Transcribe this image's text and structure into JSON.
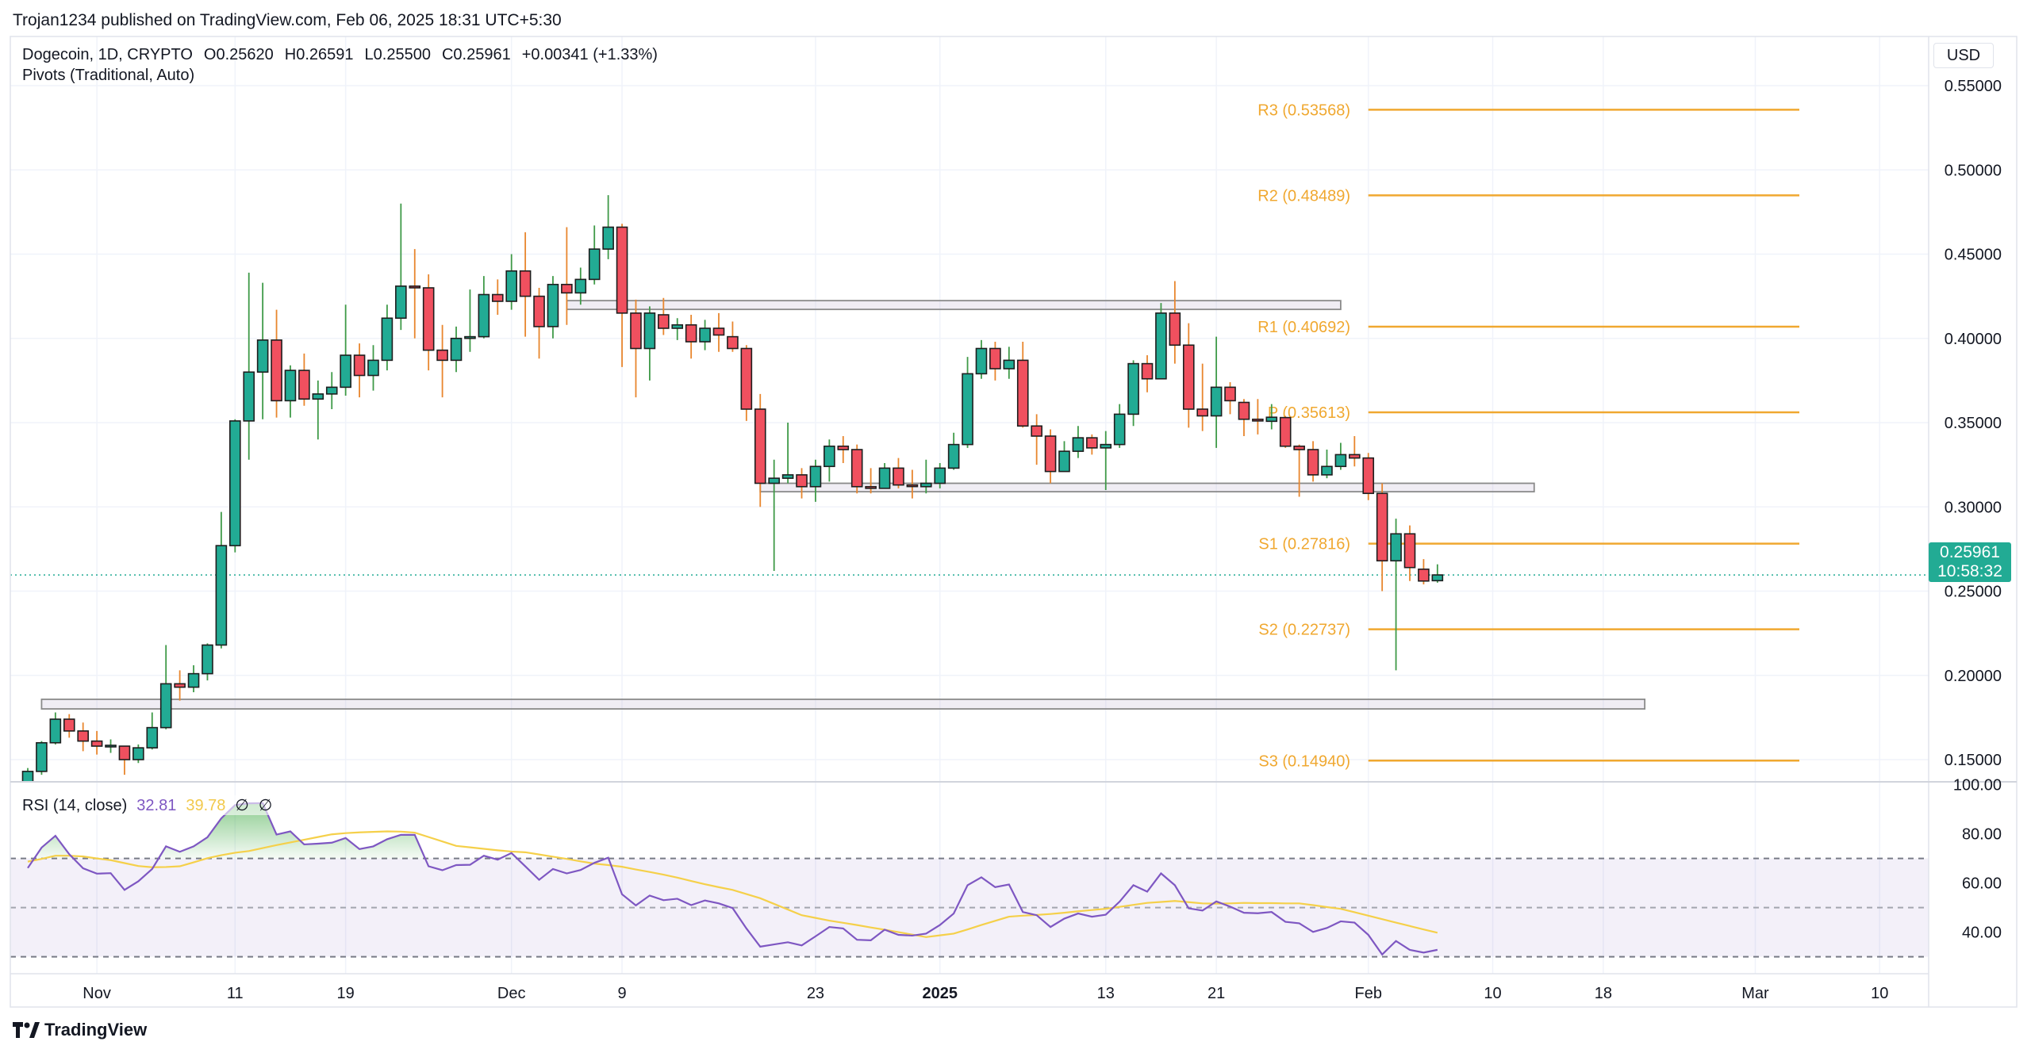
{
  "header": {
    "published": "Trojan1234 published on TradingView.com, Feb 06, 2025 18:31 UTC+5:30"
  },
  "legend": {
    "symbol": "Dogecoin, 1D, CRYPTO",
    "open": "O0.25620",
    "high": "H0.26591",
    "low": "L0.25500",
    "close": "C0.25961",
    "change": "+0.00341 (+1.33%)",
    "indicator": "Pivots (Traditional, Auto)"
  },
  "rsi_legend": {
    "label": "RSI (14, close)",
    "rsi_value": "32.81",
    "ma_value": "39.78",
    "icon1": "∅",
    "icon2": "∅"
  },
  "currency": "USD",
  "last_price": {
    "value": "0.25961",
    "countdown": "10:58:32"
  },
  "logo": {
    "text": "TradingView"
  },
  "colors": {
    "up": "#22ab94",
    "down": "#f0505f",
    "pivot": "#f0a830",
    "rsi": "#7e57c2",
    "rsi_ma": "#f5d04a"
  },
  "chart_data": [
    {
      "type": "candlestick",
      "interval": "1D",
      "yticks": [
        "0.55000",
        "0.50000",
        "0.45000",
        "0.40000",
        "0.35000",
        "0.30000",
        "0.25000",
        "0.20000",
        "0.15000"
      ],
      "xticks": [
        {
          "label": "Nov",
          "date": "2024-11-01"
        },
        {
          "label": "11",
          "date": "2024-11-11"
        },
        {
          "label": "19",
          "date": "2024-11-19"
        },
        {
          "label": "Dec",
          "date": "2024-12-01"
        },
        {
          "label": "9",
          "date": "2024-12-09"
        },
        {
          "label": "23",
          "date": "2024-12-23"
        },
        {
          "label": "2025",
          "date": "2025-01-01",
          "bold": true
        },
        {
          "label": "13",
          "date": "2025-01-13"
        },
        {
          "label": "21",
          "date": "2025-01-21"
        },
        {
          "label": "Feb",
          "date": "2025-02-01"
        },
        {
          "label": "10",
          "date": "2025-02-10"
        },
        {
          "label": "18",
          "date": "2025-02-18"
        },
        {
          "label": "Mar",
          "date": "2025-03-01"
        },
        {
          "label": "10",
          "date": "2025-03-10"
        }
      ],
      "dates": [
        "2024-10-27",
        "2024-10-28",
        "2024-10-29",
        "2024-10-30",
        "2024-10-31",
        "2024-11-01",
        "2024-11-02",
        "2024-11-03",
        "2024-11-04",
        "2024-11-05",
        "2024-11-06",
        "2024-11-07",
        "2024-11-08",
        "2024-11-09",
        "2024-11-10",
        "2024-11-11",
        "2024-11-12",
        "2024-11-13",
        "2024-11-14",
        "2024-11-15",
        "2024-11-16",
        "2024-11-17",
        "2024-11-18",
        "2024-11-19",
        "2024-11-20",
        "2024-11-21",
        "2024-11-22",
        "2024-11-23",
        "2024-11-24",
        "2024-11-25",
        "2024-11-26",
        "2024-11-27",
        "2024-11-28",
        "2024-11-29",
        "2024-11-30",
        "2024-12-01",
        "2024-12-02",
        "2024-12-03",
        "2024-12-04",
        "2024-12-05",
        "2024-12-06",
        "2024-12-07",
        "2024-12-08",
        "2024-12-09",
        "2024-12-10",
        "2024-12-11",
        "2024-12-12",
        "2024-12-13",
        "2024-12-14",
        "2024-12-15",
        "2024-12-16",
        "2024-12-17",
        "2024-12-18",
        "2024-12-19",
        "2024-12-20",
        "2024-12-21",
        "2024-12-22",
        "2024-12-23",
        "2024-12-24",
        "2024-12-25",
        "2024-12-26",
        "2024-12-27",
        "2024-12-28",
        "2024-12-29",
        "2024-12-30",
        "2024-12-31",
        "2025-01-01",
        "2025-01-02",
        "2025-01-03",
        "2025-01-04",
        "2025-01-05",
        "2025-01-06",
        "2025-01-07",
        "2025-01-08",
        "2025-01-09",
        "2025-01-10",
        "2025-01-11",
        "2025-01-12",
        "2025-01-13",
        "2025-01-14",
        "2025-01-15",
        "2025-01-16",
        "2025-01-17",
        "2025-01-18",
        "2025-01-19",
        "2025-01-20",
        "2025-01-21",
        "2025-01-22",
        "2025-01-23",
        "2025-01-24",
        "2025-01-25",
        "2025-01-26",
        "2025-01-27",
        "2025-01-28",
        "2025-01-29",
        "2025-01-30",
        "2025-01-31",
        "2025-02-01",
        "2025-02-02",
        "2025-02-03",
        "2025-02-04",
        "2025-02-05",
        "2025-02-06"
      ],
      "ohlc": [
        [
          0.136,
          0.145,
          0.135,
          0.143
        ],
        [
          0.143,
          0.161,
          0.141,
          0.16
        ],
        [
          0.16,
          0.178,
          0.159,
          0.174
        ],
        [
          0.174,
          0.177,
          0.163,
          0.167
        ],
        [
          0.167,
          0.172,
          0.155,
          0.161
        ],
        [
          0.161,
          0.167,
          0.153,
          0.158
        ],
        [
          0.158,
          0.162,
          0.154,
          0.1585
        ],
        [
          0.158,
          0.158,
          0.141,
          0.15
        ],
        [
          0.15,
          0.159,
          0.148,
          0.157
        ],
        [
          0.157,
          0.178,
          0.156,
          0.169
        ],
        [
          0.169,
          0.218,
          0.168,
          0.195
        ],
        [
          0.195,
          0.203,
          0.185,
          0.193
        ],
        [
          0.193,
          0.206,
          0.19,
          0.201
        ],
        [
          0.201,
          0.219,
          0.197,
          0.218
        ],
        [
          0.218,
          0.297,
          0.216,
          0.277
        ],
        [
          0.277,
          0.352,
          0.273,
          0.351
        ],
        [
          0.351,
          0.439,
          0.328,
          0.38
        ],
        [
          0.38,
          0.433,
          0.352,
          0.399
        ],
        [
          0.399,
          0.417,
          0.353,
          0.363
        ],
        [
          0.363,
          0.384,
          0.353,
          0.381
        ],
        [
          0.381,
          0.391,
          0.36,
          0.364
        ],
        [
          0.364,
          0.375,
          0.34,
          0.367
        ],
        [
          0.367,
          0.38,
          0.358,
          0.371
        ],
        [
          0.371,
          0.42,
          0.366,
          0.39
        ],
        [
          0.39,
          0.397,
          0.365,
          0.378
        ],
        [
          0.378,
          0.396,
          0.369,
          0.387
        ],
        [
          0.387,
          0.42,
          0.381,
          0.412
        ],
        [
          0.412,
          0.48,
          0.405,
          0.431
        ],
        [
          0.431,
          0.453,
          0.4,
          0.43
        ],
        [
          0.43,
          0.438,
          0.381,
          0.393
        ],
        [
          0.393,
          0.408,
          0.365,
          0.387
        ],
        [
          0.387,
          0.407,
          0.38,
          0.4
        ],
        [
          0.4,
          0.429,
          0.392,
          0.401
        ],
        [
          0.401,
          0.437,
          0.4,
          0.426
        ],
        [
          0.426,
          0.435,
          0.414,
          0.422
        ],
        [
          0.422,
          0.45,
          0.417,
          0.44
        ],
        [
          0.44,
          0.463,
          0.401,
          0.425
        ],
        [
          0.425,
          0.43,
          0.388,
          0.407
        ],
        [
          0.407,
          0.437,
          0.4,
          0.432
        ],
        [
          0.432,
          0.466,
          0.408,
          0.427
        ],
        [
          0.427,
          0.442,
          0.42,
          0.435
        ],
        [
          0.435,
          0.467,
          0.432,
          0.453
        ],
        [
          0.453,
          0.485,
          0.447,
          0.466
        ],
        [
          0.466,
          0.468,
          0.383,
          0.415
        ],
        [
          0.415,
          0.423,
          0.365,
          0.394
        ],
        [
          0.394,
          0.419,
          0.375,
          0.415
        ],
        [
          0.414,
          0.424,
          0.402,
          0.406
        ],
        [
          0.406,
          0.412,
          0.399,
          0.408
        ],
        [
          0.408,
          0.414,
          0.388,
          0.398
        ],
        [
          0.398,
          0.411,
          0.393,
          0.406
        ],
        [
          0.406,
          0.415,
          0.392,
          0.402
        ],
        [
          0.401,
          0.41,
          0.392,
          0.394
        ],
        [
          0.394,
          0.396,
          0.351,
          0.358
        ],
        [
          0.358,
          0.367,
          0.3,
          0.314
        ],
        [
          0.314,
          0.328,
          0.262,
          0.317
        ],
        [
          0.317,
          0.35,
          0.314,
          0.319
        ],
        [
          0.319,
          0.323,
          0.305,
          0.312
        ],
        [
          0.312,
          0.328,
          0.303,
          0.324
        ],
        [
          0.324,
          0.34,
          0.315,
          0.336
        ],
        [
          0.336,
          0.342,
          0.326,
          0.334
        ],
        [
          0.334,
          0.337,
          0.308,
          0.312
        ],
        [
          0.312,
          0.323,
          0.308,
          0.311
        ],
        [
          0.311,
          0.326,
          0.311,
          0.323
        ],
        [
          0.323,
          0.329,
          0.311,
          0.313
        ],
        [
          0.313,
          0.322,
          0.305,
          0.3128
        ],
        [
          0.312,
          0.328,
          0.308,
          0.314
        ],
        [
          0.314,
          0.326,
          0.311,
          0.323
        ],
        [
          0.323,
          0.344,
          0.322,
          0.337
        ],
        [
          0.337,
          0.389,
          0.335,
          0.379
        ],
        [
          0.379,
          0.399,
          0.376,
          0.394
        ],
        [
          0.394,
          0.398,
          0.375,
          0.382
        ],
        [
          0.382,
          0.395,
          0.376,
          0.387
        ],
        [
          0.387,
          0.398,
          0.347,
          0.348
        ],
        [
          0.348,
          0.355,
          0.325,
          0.342
        ],
        [
          0.342,
          0.346,
          0.314,
          0.321
        ],
        [
          0.321,
          0.339,
          0.321,
          0.333
        ],
        [
          0.333,
          0.348,
          0.329,
          0.341
        ],
        [
          0.341,
          0.343,
          0.331,
          0.335
        ],
        [
          0.335,
          0.345,
          0.31,
          0.337
        ],
        [
          0.337,
          0.361,
          0.335,
          0.355
        ],
        [
          0.355,
          0.387,
          0.348,
          0.385
        ],
        [
          0.385,
          0.39,
          0.368,
          0.376
        ],
        [
          0.376,
          0.421,
          0.376,
          0.415
        ],
        [
          0.415,
          0.434,
          0.385,
          0.396
        ],
        [
          0.396,
          0.409,
          0.347,
          0.358
        ],
        [
          0.358,
          0.385,
          0.345,
          0.354
        ],
        [
          0.354,
          0.401,
          0.335,
          0.371
        ],
        [
          0.371,
          0.374,
          0.355,
          0.363
        ],
        [
          0.362,
          0.364,
          0.342,
          0.352
        ],
        [
          0.352,
          0.364,
          0.343,
          0.351
        ],
        [
          0.3508,
          0.361,
          0.346,
          0.3532
        ],
        [
          0.353,
          0.354,
          0.335,
          0.336
        ],
        [
          0.336,
          0.337,
          0.306,
          0.334
        ],
        [
          0.334,
          0.339,
          0.315,
          0.319
        ],
        [
          0.319,
          0.334,
          0.317,
          0.324
        ],
        [
          0.324,
          0.338,
          0.322,
          0.331
        ],
        [
          0.331,
          0.342,
          0.324,
          0.329
        ],
        [
          0.329,
          0.332,
          0.304,
          0.308
        ],
        [
          0.308,
          0.314,
          0.25,
          0.268
        ],
        [
          0.268,
          0.293,
          0.203,
          0.284
        ],
        [
          0.284,
          0.289,
          0.256,
          0.264
        ],
        [
          0.263,
          0.269,
          0.254,
          0.256
        ],
        [
          0.2562,
          0.26591,
          0.255,
          0.25961
        ]
      ],
      "last_price": 0.25961,
      "pivots": [
        {
          "name": "R3",
          "value": "0.53568"
        },
        {
          "name": "R2",
          "value": "0.48489"
        },
        {
          "name": "R1",
          "value": "0.40692"
        },
        {
          "name": "P",
          "value": "0.35613"
        },
        {
          "name": "S1",
          "value": "0.27816"
        },
        {
          "name": "S2",
          "value": "0.22737"
        },
        {
          "name": "S3",
          "value": "0.14940"
        }
      ],
      "pivot_period_start": "2025-02-01",
      "zones": [
        {
          "top": 0.4224,
          "bottom": 0.4172,
          "from": "2024-12-05",
          "to": "2025-01-30"
        },
        {
          "top": 0.314,
          "bottom": 0.309,
          "from": "2024-12-19",
          "to": "2025-02-13"
        },
        {
          "top": 0.1858,
          "bottom": 0.1801,
          "from": "2024-10-28",
          "to": "2025-02-21"
        }
      ]
    },
    {
      "type": "line",
      "title": "RSI (14, close)",
      "yticks": [
        "100.00",
        "80.00",
        "60.00",
        "40.00"
      ],
      "bands": {
        "upper": 70,
        "middle": 50,
        "lower": 30
      },
      "rsi": [
        66.1,
        74.4,
        79.2,
        71.7,
        66.0,
        63.8,
        64.0,
        57.2,
        60.7,
        65.7,
        74.9,
        72.7,
        74.9,
        78.6,
        86.3,
        91.7,
        92.4,
        92.5,
        79.7,
        81.0,
        75.7,
        76.0,
        76.4,
        78.3,
        73.8,
        74.9,
        77.8,
        79.6,
        79.6,
        66.8,
        65.2,
        67.3,
        67.4,
        71.1,
        69.5,
        72.2,
        66.8,
        61.3,
        65.7,
        63.9,
        65.3,
        68.2,
        70.3,
        55.4,
        50.9,
        54.9,
        53.0,
        53.6,
        51.0,
        52.9,
        51.7,
        49.8,
        41.5,
        34.1,
        35.0,
        35.9,
        34.6,
        38.3,
        42.1,
        41.5,
        36.9,
        36.7,
        41.0,
        38.9,
        38.6,
        39.4,
        42.9,
        47.6,
        59.1,
        62.3,
        58.3,
        59.4,
        48.2,
        46.9,
        42.1,
        45.5,
        47.6,
        46.3,
        47.1,
        52.4,
        59.1,
        56.5,
        63.9,
        59.1,
        49.7,
        48.8,
        52.5,
        50.4,
        47.9,
        47.7,
        48.2,
        44.2,
        43.6,
        40.1,
        41.7,
        44.4,
        43.9,
        38.9,
        30.9,
        36.4,
        32.8,
        31.7,
        32.81
      ],
      "rsi_ma": [
        68.7,
        69.8,
        71.1,
        71.1,
        70.8,
        70.0,
        69.3,
        68.1,
        66.9,
        66.4,
        66.5,
        66.8,
        68.4,
        70.1,
        71.3,
        72.3,
        73.0,
        74.2,
        75.4,
        76.5,
        77.6,
        78.7,
        79.8,
        80.3,
        80.6,
        80.8,
        81.0,
        80.9,
        80.5,
        78.7,
        76.9,
        75.1,
        74.5,
        73.9,
        73.3,
        72.8,
        72.5,
        71.6,
        70.7,
        69.8,
        68.8,
        67.9,
        67.3,
        66.6,
        65.5,
        64.5,
        63.4,
        62.2,
        60.8,
        59.5,
        58.3,
        57.2,
        55.5,
        53.8,
        51.5,
        49.2,
        46.9,
        45.8,
        44.7,
        43.8,
        42.9,
        41.9,
        41.0,
        40.0,
        39.0,
        38.0,
        38.7,
        39.4,
        41.1,
        42.9,
        44.6,
        46.3,
        46.7,
        47.0,
        47.4,
        47.9,
        48.5,
        49.0,
        49.5,
        50.3,
        51.1,
        51.9,
        52.3,
        52.7,
        52.2,
        51.7,
        51.6,
        51.7,
        51.9,
        51.8,
        51.8,
        51.7,
        51.7,
        51.0,
        50.2,
        49.5,
        48.1,
        46.7,
        45.3,
        43.9,
        42.5,
        41.1,
        39.78
      ]
    }
  ]
}
